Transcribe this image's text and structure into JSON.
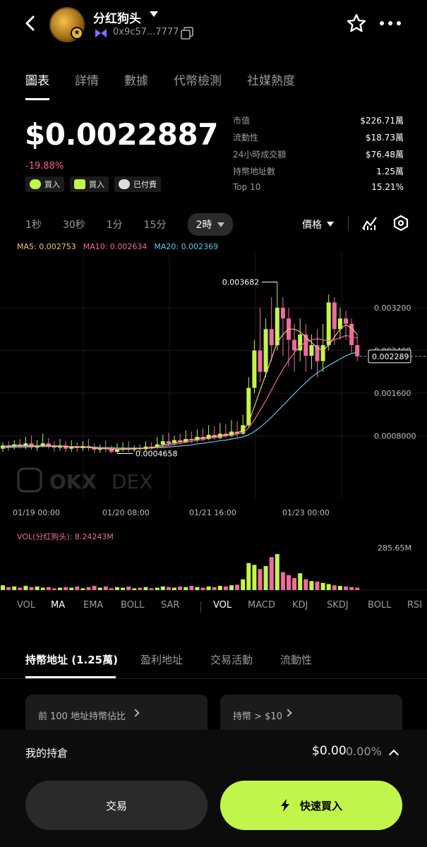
{
  "header": {
    "token_name": "分红狗头",
    "address": "0x9c57...7777",
    "icons": [
      "back-arrow-icon",
      "chain-icon",
      "copy-icon",
      "star-icon",
      "more-icon"
    ]
  },
  "tabs": [
    {
      "label": "圖表",
      "active": true
    },
    {
      "label": "詳情",
      "active": false
    },
    {
      "label": "數據",
      "active": false
    },
    {
      "label": "代幣檢測",
      "active": false
    },
    {
      "label": "社媒熱度",
      "active": false
    }
  ],
  "price": {
    "value": "$0.0022887",
    "change": "-19.88%",
    "badges": [
      "買入",
      "買入",
      "已付費"
    ]
  },
  "stats": [
    {
      "k": "市值",
      "v": "$226.71萬"
    },
    {
      "k": "流動性",
      "v": "$18.73萬"
    },
    {
      "k": "24小時成交額",
      "v": "$76.48萬"
    },
    {
      "k": "持幣地址數",
      "v": "1.25萬"
    },
    {
      "k": "Top 10",
      "v": "15.21%"
    }
  ],
  "intervals": [
    "1秒",
    "30秒",
    "1分",
    "15分"
  ],
  "active_interval": "2時",
  "price_type": "價格",
  "ma": {
    "m5": "MA5: 0.002753",
    "m10": "MA10: 0.002634",
    "m20": "MA20: 0.002369"
  },
  "watermark": "DEX",
  "chart_data": {
    "type": "candlestick",
    "y_ticks": [
      "0.003200",
      "0.002400",
      "0.001600",
      "0.0008000"
    ],
    "x_ticks": [
      "01/19 00:00",
      "01/20 08:00",
      "01/21 16:00",
      "01/23 00:00"
    ],
    "high_label": "0.003682",
    "low_label": "0.0004658",
    "last_price": "0.002289",
    "ylim": [
      0,
      0.0041
    ],
    "candles": [
      [
        0.00056,
        0.00062,
        0.00068,
        0.0005
      ],
      [
        0.00062,
        0.00058,
        0.0007,
        0.00052
      ],
      [
        0.00058,
        0.00064,
        0.00072,
        0.00054
      ],
      [
        0.00064,
        0.0006,
        0.00074,
        0.00056
      ],
      [
        0.0006,
        0.00066,
        0.00078,
        0.00055
      ],
      [
        0.00066,
        0.00058,
        0.0008,
        0.00054
      ],
      [
        0.00058,
        0.00062,
        0.00072,
        0.00052
      ],
      [
        0.00062,
        0.00066,
        0.00084,
        0.00058
      ],
      [
        0.00066,
        0.0006,
        0.00076,
        0.00056
      ],
      [
        0.0006,
        0.00058,
        0.0007,
        0.0005
      ],
      [
        0.00058,
        0.00062,
        0.00074,
        0.00052
      ],
      [
        0.00062,
        0.00056,
        0.0007,
        0.0005
      ],
      [
        0.00056,
        0.0006,
        0.00072,
        0.0005
      ],
      [
        0.0006,
        0.00057,
        0.00068,
        0.0005
      ],
      [
        0.00057,
        0.00061,
        0.0007,
        0.00052
      ],
      [
        0.00061,
        0.00058,
        0.00074,
        0.00052
      ],
      [
        0.00058,
        0.00054,
        0.00066,
        0.00048
      ],
      [
        0.00054,
        0.00057,
        0.00064,
        0.00048
      ],
      [
        0.00057,
        0.00055,
        0.00072,
        0.00049
      ],
      [
        0.00055,
        0.0005,
        0.00062,
        0.00047
      ],
      [
        0.0005,
        0.00054,
        0.00066,
        0.00047
      ],
      [
        0.00054,
        0.00058,
        0.00068,
        0.0005
      ],
      [
        0.00058,
        0.00054,
        0.0007,
        0.00049
      ],
      [
        0.00054,
        0.00057,
        0.00062,
        0.0005
      ],
      [
        0.00057,
        0.00055,
        0.00064,
        0.0005
      ],
      [
        0.00055,
        0.0006,
        0.0007,
        0.00052
      ],
      [
        0.0006,
        0.00058,
        0.00068,
        0.00054
      ],
      [
        0.00058,
        0.00064,
        0.00078,
        0.00056
      ],
      [
        0.00064,
        0.0007,
        0.00082,
        0.0006
      ],
      [
        0.0007,
        0.00066,
        0.00086,
        0.00062
      ],
      [
        0.00066,
        0.00072,
        0.0008,
        0.00062
      ],
      [
        0.00072,
        0.00068,
        0.00084,
        0.00064
      ],
      [
        0.00068,
        0.00074,
        0.0009,
        0.00066
      ],
      [
        0.00074,
        0.00072,
        0.00088,
        0.00066
      ],
      [
        0.00072,
        0.00078,
        0.00092,
        0.00068
      ],
      [
        0.00078,
        0.00074,
        0.00094,
        0.0007
      ],
      [
        0.00074,
        0.00082,
        0.001,
        0.00072
      ],
      [
        0.00082,
        0.00076,
        0.00098,
        0.00072
      ],
      [
        0.00076,
        0.00084,
        0.00104,
        0.00074
      ],
      [
        0.00084,
        0.0008,
        0.00102,
        0.00076
      ],
      [
        0.0008,
        0.00088,
        0.0011,
        0.00078
      ],
      [
        0.00088,
        0.00084,
        0.00108,
        0.00078
      ],
      [
        0.00084,
        0.001,
        0.0012,
        0.00082
      ],
      [
        0.001,
        0.0017,
        0.0019,
        0.00096
      ],
      [
        0.0017,
        0.0024,
        0.0026,
        0.0016
      ],
      [
        0.0024,
        0.002,
        0.0032,
        0.0018
      ],
      [
        0.002,
        0.0028,
        0.003,
        0.0019
      ],
      [
        0.0028,
        0.0025,
        0.0034,
        0.0022
      ],
      [
        0.0025,
        0.0032,
        0.00368,
        0.0024
      ],
      [
        0.0032,
        0.003,
        0.0034,
        0.0023
      ],
      [
        0.003,
        0.0026,
        0.0032,
        0.0021
      ],
      [
        0.0026,
        0.0024,
        0.0029,
        0.002
      ],
      [
        0.0024,
        0.0027,
        0.003,
        0.0022
      ],
      [
        0.0027,
        0.0023,
        0.0029,
        0.002
      ],
      [
        0.0023,
        0.0025,
        0.0027,
        0.00205
      ],
      [
        0.0025,
        0.0022,
        0.0028,
        0.0019
      ],
      [
        0.0022,
        0.0025,
        0.0029,
        0.002
      ],
      [
        0.0025,
        0.0033,
        0.00345,
        0.0024
      ],
      [
        0.0033,
        0.0028,
        0.0034,
        0.0025
      ],
      [
        0.0028,
        0.003,
        0.0032,
        0.0026
      ],
      [
        0.003,
        0.0029,
        0.00315,
        0.0026
      ],
      [
        0.0029,
        0.0025,
        0.003,
        0.00235
      ],
      [
        0.0025,
        0.00229,
        0.0027,
        0.0022
      ]
    ],
    "ma5": [
      0.0006,
      0.00061,
      0.00062,
      0.00062,
      0.00062,
      0.00062,
      0.00061,
      0.00062,
      0.00062,
      0.00061,
      0.00061,
      0.0006,
      0.00059,
      0.00059,
      0.00059,
      0.00058,
      0.00057,
      0.00056,
      0.00056,
      0.00055,
      0.00054,
      0.00055,
      0.00055,
      0.00056,
      0.00056,
      0.00057,
      0.00058,
      0.0006,
      0.00063,
      0.00065,
      0.00067,
      0.00069,
      0.00071,
      0.00073,
      0.00075,
      0.00076,
      0.00078,
      0.00079,
      0.00081,
      0.00082,
      0.00084,
      0.00086,
      0.0009,
      0.00105,
      0.00135,
      0.00165,
      0.00195,
      0.00225,
      0.00255,
      0.0027,
      0.0028,
      0.0028,
      0.00275,
      0.00265,
      0.00255,
      0.00245,
      0.0024,
      0.0025,
      0.00265,
      0.0028,
      0.00288,
      0.00282,
      0.0027
    ],
    "ma10": [
      0.0006,
      0.0006,
      0.00061,
      0.00061,
      0.00061,
      0.00061,
      0.00061,
      0.00061,
      0.00061,
      0.00061,
      0.00061,
      0.0006,
      0.0006,
      0.00059,
      0.00059,
      0.00058,
      0.00058,
      0.00057,
      0.00057,
      0.00056,
      0.00056,
      0.00056,
      0.00056,
      0.00056,
      0.00056,
      0.00057,
      0.00057,
      0.00058,
      0.0006,
      0.00062,
      0.00064,
      0.00066,
      0.00068,
      0.0007,
      0.00072,
      0.00073,
      0.00075,
      0.00077,
      0.00078,
      0.0008,
      0.00081,
      0.00083,
      0.00086,
      0.00095,
      0.0011,
      0.00128,
      0.00146,
      0.00166,
      0.00186,
      0.00205,
      0.00222,
      0.00236,
      0.00248,
      0.00256,
      0.0026,
      0.00262,
      0.0026,
      0.00258,
      0.0026,
      0.00264,
      0.00268,
      0.00266,
      0.00263
    ],
    "ma20": [
      0.00058,
      0.00058,
      0.00059,
      0.00059,
      0.00059,
      0.0006,
      0.0006,
      0.0006,
      0.0006,
      0.0006,
      0.0006,
      0.0006,
      0.0006,
      0.0006,
      0.00059,
      0.00059,
      0.00059,
      0.00058,
      0.00058,
      0.00058,
      0.00057,
      0.00057,
      0.00057,
      0.00057,
      0.00057,
      0.00057,
      0.00057,
      0.00058,
      0.00058,
      0.00059,
      0.0006,
      0.00061,
      0.00062,
      0.00063,
      0.00065,
      0.00066,
      0.00068,
      0.00069,
      0.00071,
      0.00072,
      0.00074,
      0.00076,
      0.00078,
      0.00082,
      0.00088,
      0.00096,
      0.00105,
      0.00115,
      0.00126,
      0.00137,
      0.00148,
      0.00159,
      0.0017,
      0.0018,
      0.0019,
      0.00198,
      0.00205,
      0.00212,
      0.00218,
      0.00224,
      0.0023,
      0.00234,
      0.00237
    ],
    "volume_label": "VOL(分红狗头): 8.24243M",
    "volume_max_label": "285.65M",
    "volumes": [
      0.08,
      0.05,
      0.06,
      0.04,
      0.07,
      0.05,
      0.06,
      0.04,
      0.05,
      0.03,
      0.04,
      0.05,
      0.04,
      0.06,
      0.03,
      0.05,
      0.07,
      0.04,
      0.06,
      0.03,
      0.05,
      0.04,
      0.06,
      0.03,
      0.04,
      0.05,
      0.03,
      0.04,
      0.06,
      0.05,
      0.04,
      0.06,
      0.05,
      0.07,
      0.05,
      0.04,
      0.06,
      0.05,
      0.07,
      0.06,
      0.08,
      0.09,
      0.18,
      0.45,
      0.42,
      0.35,
      0.4,
      0.55,
      0.6,
      0.3,
      0.25,
      0.2,
      0.28,
      0.18,
      0.15,
      0.14,
      0.12,
      0.1,
      0.08,
      0.07,
      0.06,
      0.05,
      0.04
    ]
  },
  "indicators_left": [
    "VOL",
    "MA",
    "EMA",
    "BOLL",
    "SAR"
  ],
  "indicators_right": [
    "VOL",
    "MACD",
    "KDJ",
    "SKDJ",
    "BOLL",
    "RSI"
  ],
  "holder_tabs": [
    "持幣地址 (1.25萬)",
    "盈利地址",
    "交易活動",
    "流動性"
  ],
  "cards": [
    "前 100 地址持幣佔比",
    "持幣 > $10"
  ],
  "bottom": {
    "position_label": "我的持倉",
    "position_value": "$0.00",
    "position_pct": "0.00%",
    "trade_label": "交易",
    "quick_buy_label": "快速買入"
  },
  "colors": {
    "up": "#c2f54a",
    "down": "#ef6b9d",
    "accent": "#c2f54a"
  }
}
